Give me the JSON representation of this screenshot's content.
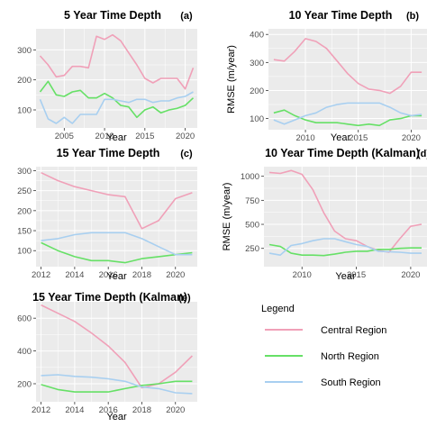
{
  "colors": {
    "central": "#f0a0b8",
    "north": "#66e066",
    "south": "#a8cff0",
    "panel_bg": "#ebebeb",
    "grid": "#ffffff"
  },
  "legend": {
    "title": "Legend",
    "items": [
      "Central Region",
      "North Region",
      "South Region"
    ]
  },
  "chart_data": [
    {
      "type": "line",
      "title": "5 Year Time Depth",
      "panel_label": "(a)",
      "xlabel": "Year",
      "ylabel": "",
      "xlim": [
        2001.5,
        2021.5
      ],
      "ylim": [
        40,
        370
      ],
      "xticks": [
        2005,
        2010,
        2015,
        2020
      ],
      "yticks": [
        100,
        200,
        300
      ],
      "ytick_labels": [
        "100",
        "200",
        "300"
      ],
      "x": [
        2002,
        2003,
        2004,
        2005,
        2006,
        2007,
        2008,
        2009,
        2010,
        2011,
        2012,
        2013,
        2014,
        2015,
        2016,
        2017,
        2018,
        2019,
        2020,
        2021
      ],
      "series": [
        {
          "name": "Central Region",
          "values": [
            280,
            250,
            210,
            215,
            245,
            245,
            240,
            345,
            335,
            350,
            330,
            290,
            250,
            205,
            190,
            205,
            205,
            205,
            170,
            240
          ]
        },
        {
          "name": "North Region",
          "values": [
            160,
            195,
            150,
            145,
            160,
            165,
            140,
            140,
            155,
            140,
            115,
            110,
            75,
            100,
            110,
            90,
            100,
            105,
            115,
            140
          ]
        },
        {
          "name": "South Region",
          "values": [
            135,
            70,
            55,
            75,
            55,
            85,
            85,
            85,
            135,
            135,
            130,
            125,
            135,
            135,
            125,
            130,
            130,
            140,
            145,
            160
          ]
        }
      ]
    },
    {
      "type": "line",
      "title": "10 Year Time Depth",
      "panel_label": "(b)",
      "xlabel": "Year",
      "ylabel": "RMSE (m/year)",
      "xlim": [
        2006.5,
        2021.5
      ],
      "ylim": [
        60,
        420
      ],
      "xticks": [
        2010,
        2015,
        2020
      ],
      "yticks": [
        100,
        200,
        300,
        400
      ],
      "ytick_labels": [
        "100",
        "200",
        "300",
        "400"
      ],
      "x": [
        2007,
        2008,
        2009,
        2010,
        2011,
        2012,
        2013,
        2014,
        2015,
        2016,
        2017,
        2018,
        2019,
        2020,
        2021
      ],
      "series": [
        {
          "name": "Central Region",
          "values": [
            310,
            305,
            340,
            385,
            375,
            350,
            305,
            260,
            225,
            205,
            200,
            190,
            215,
            265,
            265
          ]
        },
        {
          "name": "North Region",
          "values": [
            120,
            130,
            110,
            95,
            85,
            85,
            85,
            80,
            75,
            80,
            75,
            95,
            100,
            110,
            110
          ]
        },
        {
          "name": "South Region",
          "values": [
            95,
            80,
            95,
            110,
            120,
            140,
            150,
            155,
            155,
            155,
            155,
            140,
            120,
            110,
            115
          ]
        }
      ]
    },
    {
      "type": "line",
      "title": "15 Year Time Depth",
      "panel_label": "(c)",
      "xlabel": "Year",
      "ylabel": "",
      "xlim": [
        2011.7,
        2021.3
      ],
      "ylim": [
        60,
        310
      ],
      "xticks": [
        2012,
        2014,
        2016,
        2018,
        2020
      ],
      "yticks": [
        100,
        150,
        200,
        250,
        300
      ],
      "ytick_labels": [
        "100",
        "150",
        "200",
        "250",
        "300"
      ],
      "x": [
        2012,
        2013,
        2014,
        2015,
        2016,
        2017,
        2018,
        2019,
        2020,
        2021
      ],
      "series": [
        {
          "name": "Central Region",
          "values": [
            295,
            275,
            260,
            250,
            240,
            235,
            155,
            175,
            230,
            245
          ]
        },
        {
          "name": "North Region",
          "values": [
            120,
            100,
            85,
            75,
            75,
            70,
            80,
            85,
            90,
            95
          ]
        },
        {
          "name": "South Region",
          "values": [
            125,
            130,
            140,
            145,
            145,
            145,
            130,
            110,
            90,
            90
          ]
        }
      ]
    },
    {
      "type": "line",
      "title": "10 Year Time Depth (Kalman)",
      "panel_label": "(d)",
      "xlabel": "Year",
      "ylabel": "RMSE (m/year)",
      "xlim": [
        2006.5,
        2021.5
      ],
      "ylim": [
        60,
        1100
      ],
      "xticks": [
        2010,
        2015,
        2020
      ],
      "yticks": [
        250,
        500,
        750,
        1000
      ],
      "ytick_labels": [
        "250",
        "500",
        "750",
        "1000"
      ],
      "x": [
        2007,
        2008,
        2009,
        2010,
        2011,
        2012,
        2013,
        2014,
        2015,
        2016,
        2017,
        2018,
        2019,
        2020,
        2021
      ],
      "series": [
        {
          "name": "Central Region",
          "values": [
            1040,
            1030,
            1060,
            1020,
            860,
            620,
            430,
            350,
            330,
            270,
            230,
            210,
            350,
            480,
            500
          ]
        },
        {
          "name": "North Region",
          "values": [
            290,
            270,
            200,
            180,
            180,
            175,
            190,
            210,
            220,
            220,
            240,
            240,
            250,
            255,
            255
          ]
        },
        {
          "name": "South Region",
          "values": [
            200,
            180,
            280,
            300,
            330,
            350,
            350,
            320,
            290,
            270,
            220,
            215,
            210,
            200,
            200
          ]
        }
      ]
    },
    {
      "type": "line",
      "title": "15 Year Time Depth (Kalman)",
      "panel_label": "(e)",
      "xlabel": "Year",
      "ylabel": "",
      "xlim": [
        2011.7,
        2021.3
      ],
      "ylim": [
        90,
        700
      ],
      "xticks": [
        2012,
        2014,
        2016,
        2018,
        2020
      ],
      "yticks": [
        200,
        400,
        600
      ],
      "ytick_labels": [
        "200",
        "400",
        "600"
      ],
      "x": [
        2012,
        2013,
        2014,
        2015,
        2016,
        2017,
        2018,
        2019,
        2020,
        2021
      ],
      "series": [
        {
          "name": "Central Region",
          "values": [
            680,
            630,
            580,
            510,
            430,
            330,
            175,
            200,
            270,
            370
          ]
        },
        {
          "name": "North Region",
          "values": [
            195,
            165,
            150,
            150,
            150,
            170,
            190,
            200,
            215,
            215
          ]
        },
        {
          "name": "South Region",
          "values": [
            250,
            255,
            245,
            240,
            230,
            215,
            180,
            170,
            145,
            140
          ]
        }
      ]
    }
  ]
}
